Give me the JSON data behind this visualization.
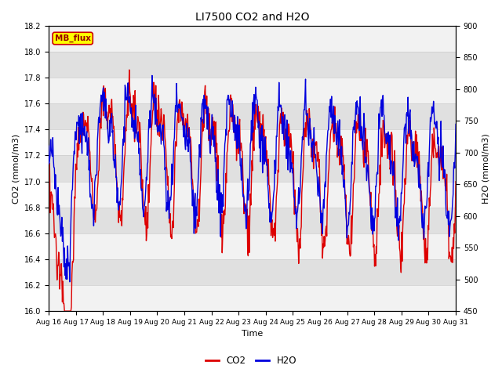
{
  "title": "LI7500 CO2 and H2O",
  "xlabel": "Time",
  "ylabel_left": "CO2 (mmol/m3)",
  "ylabel_right": "H2O (mmol/m3)",
  "co2_ylim": [
    16.0,
    18.2
  ],
  "h2o_ylim": [
    450,
    900
  ],
  "co2_yticks": [
    16.0,
    16.2,
    16.4,
    16.6,
    16.8,
    17.0,
    17.2,
    17.4,
    17.6,
    17.8,
    18.0,
    18.2
  ],
  "h2o_yticks": [
    450,
    500,
    550,
    600,
    650,
    700,
    750,
    800,
    850,
    900
  ],
  "x_tick_labels": [
    "Aug 16",
    "Aug 17",
    "Aug 18",
    "Aug 19",
    "Aug 20",
    "Aug 21",
    "Aug 22",
    "Aug 23",
    "Aug 24",
    "Aug 25",
    "Aug 26",
    "Aug 27",
    "Aug 28",
    "Aug 29",
    "Aug 30",
    "Aug 31"
  ],
  "co2_color": "#dd0000",
  "h2o_color": "#0000dd",
  "annotation_text": "MB_flux",
  "annotation_bg": "#ffff00",
  "annotation_border": "#cc0000",
  "grid_color": "#cccccc",
  "band_color_light": "#f2f2f2",
  "band_color_dark": "#e0e0e0",
  "plot_bg": "#ffffff",
  "legend_co2": "CO2",
  "legend_h2o": "H2O"
}
